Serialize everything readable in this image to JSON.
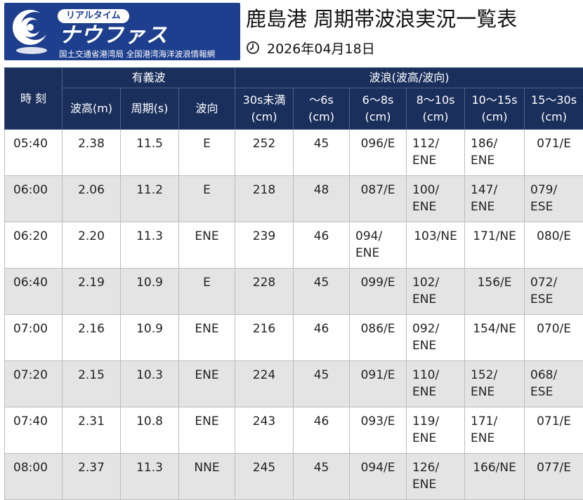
{
  "header": {
    "logo_badge": "リアルタイム",
    "logo_name": "ナウファス",
    "logo_sub": "国土交通省港湾局 全国港湾海洋波浪情報網",
    "title": "鹿島港 周期帯波浪実況一覧表",
    "date": "2026年04月18日",
    "logo_color": "#1d3f8e"
  },
  "table": {
    "col_time": "時 刻",
    "group_significant": "有義波",
    "group_spectrum": "波浪(波高/波向)",
    "sig_headers": [
      "波高(m)",
      "周期(s)",
      "波向"
    ],
    "band_headers": [
      {
        "top": "30s未満",
        "bottom": "(cm)"
      },
      {
        "top": "〜6s",
        "bottom": "(cm)"
      },
      {
        "top": "6〜8s",
        "bottom": "(cm)"
      },
      {
        "top": "8〜10s",
        "bottom": "(cm)"
      },
      {
        "top": "10〜15s",
        "bottom": "(cm)"
      },
      {
        "top": "15〜30s",
        "bottom": "(cm)"
      }
    ],
    "header_color": "#1b2f5c",
    "rows": [
      {
        "time": "05:40",
        "h": "2.38",
        "p": "11.5",
        "d": "E",
        "b30": "252",
        "b6": "45",
        "b8": "096/E",
        "b10": "112/\nENE",
        "b15": "186/\nENE",
        "b30s": "071/E"
      },
      {
        "time": "06:00",
        "h": "2.06",
        "p": "11.2",
        "d": "E",
        "b30": "218",
        "b6": "48",
        "b8": "087/E",
        "b10": "100/\nENE",
        "b15": "147/\nENE",
        "b30s": "079/\nESE"
      },
      {
        "time": "06:20",
        "h": "2.20",
        "p": "11.3",
        "d": "ENE",
        "b30": "239",
        "b6": "46",
        "b8": "094/\nENE",
        "b10": "103/NE",
        "b15": "171/NE",
        "b30s": "080/E"
      },
      {
        "time": "06:40",
        "h": "2.19",
        "p": "10.9",
        "d": "E",
        "b30": "228",
        "b6": "45",
        "b8": "099/E",
        "b10": "102/\nENE",
        "b15": "156/E",
        "b30s": "072/\nESE"
      },
      {
        "time": "07:00",
        "h": "2.16",
        "p": "10.9",
        "d": "ENE",
        "b30": "216",
        "b6": "46",
        "b8": "086/E",
        "b10": "092/\nENE",
        "b15": "154/NE",
        "b30s": "070/E"
      },
      {
        "time": "07:20",
        "h": "2.15",
        "p": "10.3",
        "d": "ENE",
        "b30": "224",
        "b6": "45",
        "b8": "091/E",
        "b10": "110/\nENE",
        "b15": "152/\nENE",
        "b30s": "068/\nESE"
      },
      {
        "time": "07:40",
        "h": "2.31",
        "p": "10.8",
        "d": "ENE",
        "b30": "243",
        "b6": "46",
        "b8": "093/E",
        "b10": "119/\nENE",
        "b15": "171/\nENE",
        "b30s": "071/E"
      },
      {
        "time": "08:00",
        "h": "2.37",
        "p": "11.3",
        "d": "NNE",
        "b30": "245",
        "b6": "45",
        "b8": "094/E",
        "b10": "126/\nENE",
        "b15": "166/NE",
        "b30s": "077/E"
      }
    ]
  }
}
